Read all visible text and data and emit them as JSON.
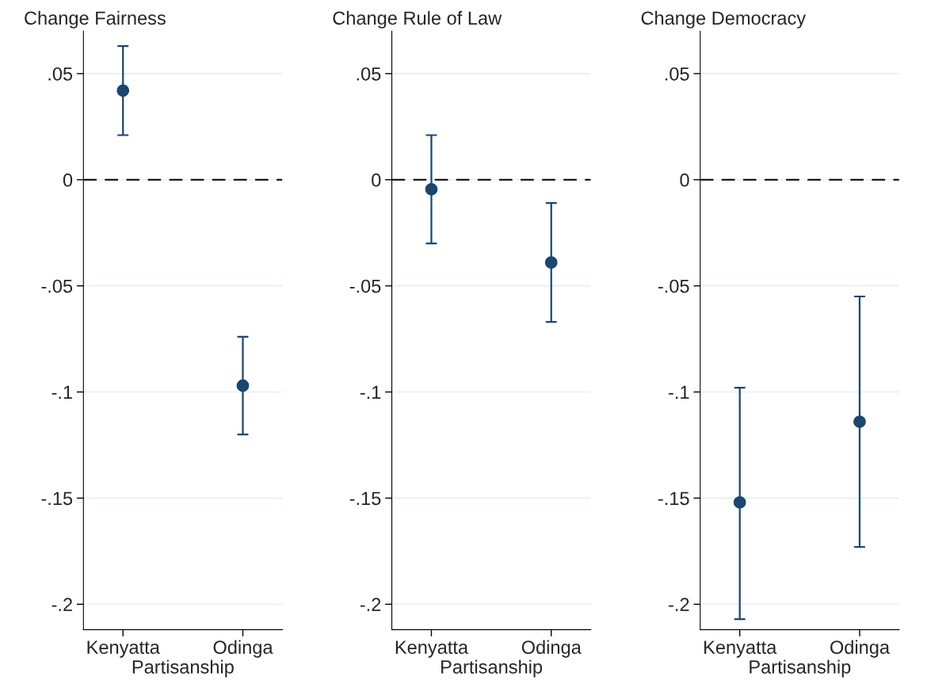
{
  "chart_data": [
    {
      "type": "scatter",
      "title": "Change Fairness",
      "xlabel": "Partisanship",
      "categories": [
        "Kenyatta",
        "Odinga"
      ],
      "series": [
        {
          "color": "#1a476f",
          "values": [
            0.042,
            -0.097
          ],
          "errors": [
            [
              0.021,
              0.063
            ],
            [
              -0.12,
              -0.074
            ]
          ]
        }
      ],
      "ylim": [
        -0.212,
        0.07
      ],
      "yticks": [
        {
          "value": 0.05,
          "label": ".05"
        },
        0,
        {
          "value": -0.05,
          "label": "-.05"
        },
        {
          "value": -0.1,
          "label": "-.1"
        },
        {
          "value": -0.15,
          "label": "-.15"
        },
        {
          "value": -0.2,
          "label": "-.2"
        }
      ],
      "ref_lines": [
        {
          "axis": "y",
          "value": 0,
          "color": "#000000",
          "line_style": "dashed"
        }
      ],
      "grid": "y",
      "marker": "circle",
      "legend": false
    },
    {
      "type": "scatter",
      "title": "Change Rule of Law",
      "xlabel": "Partisanship",
      "categories": [
        "Kenyatta",
        "Odinga"
      ],
      "series": [
        {
          "color": "#1a476f",
          "values": [
            -0.0045,
            -0.039
          ],
          "errors": [
            [
              -0.03,
              0.021
            ],
            [
              -0.067,
              -0.011
            ]
          ]
        }
      ],
      "ylim": [
        -0.212,
        0.07
      ],
      "yticks": [
        {
          "value": 0.05,
          "label": ".05"
        },
        0,
        {
          "value": -0.05,
          "label": "-.05"
        },
        {
          "value": -0.1,
          "label": "-.1"
        },
        {
          "value": -0.15,
          "label": "-.15"
        },
        {
          "value": -0.2,
          "label": "-.2"
        }
      ],
      "ref_lines": [
        {
          "axis": "y",
          "value": 0,
          "color": "#000000",
          "line_style": "dashed"
        }
      ],
      "grid": "y",
      "marker": "circle",
      "legend": false
    },
    {
      "type": "scatter",
      "title": "Change Democracy",
      "xlabel": "Partisanship",
      "categories": [
        "Kenyatta",
        "Odinga"
      ],
      "series": [
        {
          "color": "#1a476f",
          "values": [
            -0.152,
            -0.114
          ],
          "errors": [
            [
              -0.207,
              -0.098
            ],
            [
              -0.173,
              -0.055
            ]
          ]
        }
      ],
      "ylim": [
        -0.212,
        0.07
      ],
      "yticks": [
        {
          "value": 0.05,
          "label": ".05"
        },
        0,
        {
          "value": -0.05,
          "label": "-.05"
        },
        {
          "value": -0.1,
          "label": "-.1"
        },
        {
          "value": -0.15,
          "label": "-.15"
        },
        {
          "value": -0.2,
          "label": "-.2"
        }
      ],
      "ref_lines": [
        {
          "axis": "y",
          "value": 0,
          "color": "#000000",
          "line_style": "dashed"
        }
      ],
      "grid": "y",
      "marker": "circle",
      "legend": false
    }
  ]
}
